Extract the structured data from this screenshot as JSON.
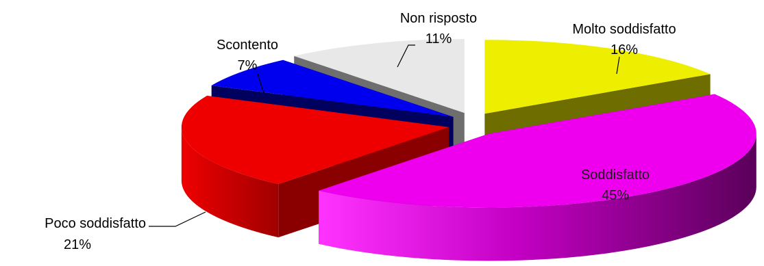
{
  "chart_data": {
    "type": "pie",
    "style": "3d-exploded",
    "title": "",
    "slices": [
      {
        "label": "Molto soddisfatto",
        "value": 16,
        "value_label": "16%",
        "color": "#EEEE00",
        "side_color": "#6E6E00"
      },
      {
        "label": "Soddisfatto",
        "value": 45,
        "value_label": "45%",
        "color": "#EE00EE",
        "side_color": "#6A006A"
      },
      {
        "label": "Poco soddisfatto",
        "value": 21,
        "value_label": "21%",
        "color": "#EE0000",
        "side_color": "#8A0000"
      },
      {
        "label": "Scontento",
        "value": 7,
        "value_label": "7%",
        "color": "#0000EE",
        "side_color": "#00005E"
      },
      {
        "label": "Non risposto",
        "value": 11,
        "value_label": "11%",
        "color": "#E8E8E8",
        "side_color": "#6E6E6E"
      }
    ]
  }
}
